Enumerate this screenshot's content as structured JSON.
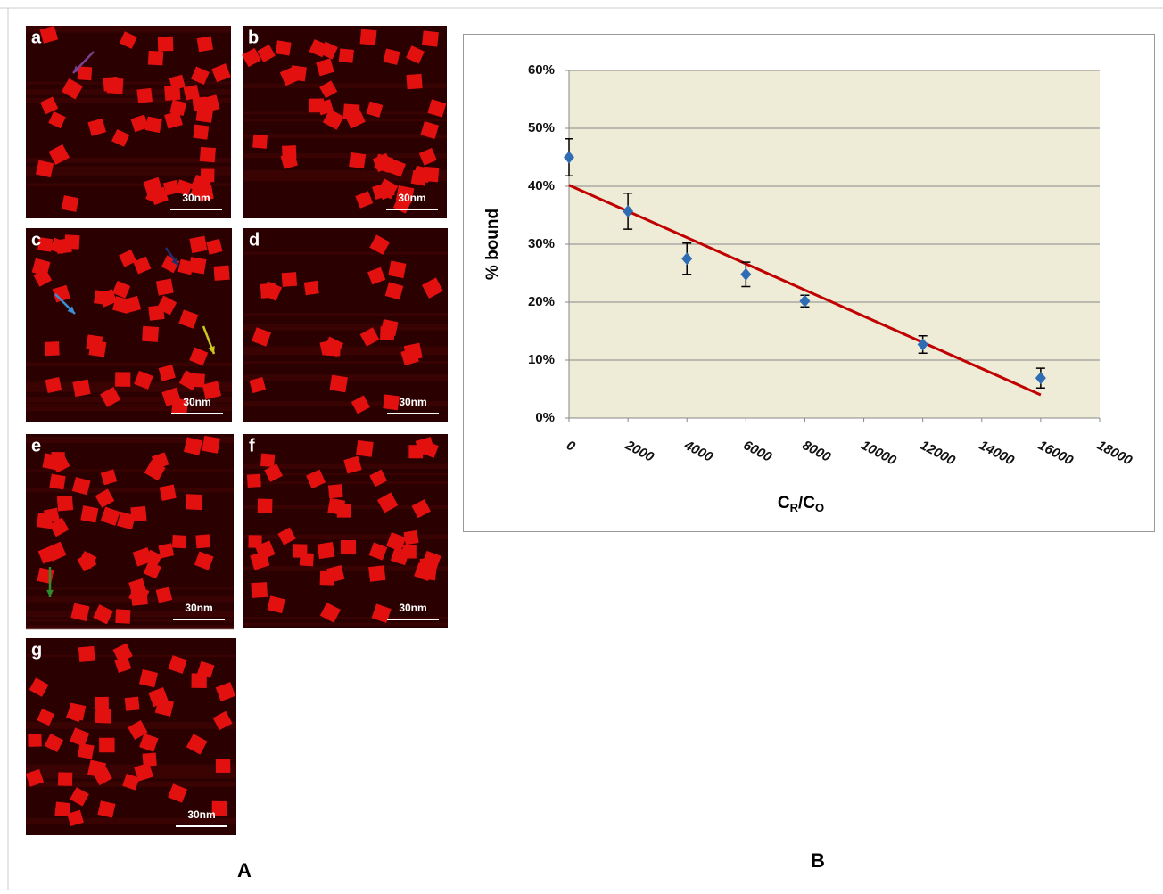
{
  "panels": [
    {
      "label": "a",
      "scale": "30nm"
    },
    {
      "label": "b",
      "scale": "30nm"
    },
    {
      "label": "c",
      "scale": "30nm"
    },
    {
      "label": "d",
      "scale": "30nm"
    },
    {
      "label": "e",
      "scale": "30nm"
    },
    {
      "label": "f",
      "scale": "30nm"
    },
    {
      "label": "g",
      "scale": "30nm"
    }
  ],
  "figure_labels": [
    "A",
    "B"
  ],
  "chart_data": {
    "type": "scatter",
    "ylabel": "% bound",
    "xlabel_parts": [
      "C",
      "R",
      "/C",
      "O"
    ],
    "x": [
      0,
      2000,
      4000,
      6000,
      8000,
      12000,
      16000
    ],
    "values": [
      45,
      35.7,
      27.5,
      24.8,
      20.2,
      12.7,
      6.9
    ],
    "errors": [
      3.2,
      3.1,
      2.7,
      2.1,
      1.0,
      1.5,
      1.7
    ],
    "color": "#2e6db4",
    "trendline": {
      "x": [
        0,
        16000
      ],
      "values": [
        40.2,
        4.0
      ],
      "color": "#c00000"
    },
    "xlim": [
      0,
      18000
    ],
    "xticks": [
      0,
      2000,
      4000,
      6000,
      8000,
      10000,
      12000,
      14000,
      16000,
      18000
    ],
    "ylim": [
      0,
      60
    ],
    "yticks": [
      {
        "value": 0,
        "label": "0%"
      },
      {
        "value": 10,
        "label": "10%"
      },
      {
        "value": 20,
        "label": "20%"
      },
      {
        "value": 30,
        "label": "30%"
      },
      {
        "value": 40,
        "label": "40%"
      },
      {
        "value": 50,
        "label": "50%"
      },
      {
        "value": 60,
        "label": "60%"
      }
    ],
    "grid": true,
    "plot_background": "#eeebd6"
  }
}
